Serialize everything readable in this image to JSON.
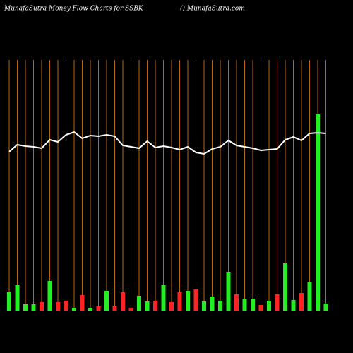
{
  "chart_data": {
    "type": "bar",
    "title": "MunafaSutra  Money Flow  Charts for SSBK",
    "subtitle": "() MunafaSutra.com",
    "categories": [
      null,
      null,
      null,
      null,
      null,
      null,
      null,
      null,
      null,
      null,
      null,
      null,
      null,
      null,
      null,
      null,
      null,
      null,
      null,
      null,
      null,
      null,
      null,
      null,
      null,
      null,
      null,
      null,
      null,
      null,
      null,
      null,
      null,
      null,
      null,
      null,
      null,
      null,
      null,
      null
    ],
    "series": [
      {
        "type": "bar",
        "values": [
          26,
          36,
          9,
          9,
          12,
          42,
          12,
          14,
          4,
          22,
          4,
          6,
          28,
          7,
          26,
          4,
          21,
          13,
          14,
          36,
          12,
          26,
          28,
          30,
          13,
          20,
          14,
          55,
          23,
          16,
          17,
          8,
          14,
          23,
          67,
          15,
          25,
          40,
          278,
          10
        ],
        "colors": [
          "#22ee22",
          "#22ee22",
          "#22ee22",
          "#22ee22",
          "#ff2222",
          "#22ee22",
          "#ff2222",
          "#ff2222",
          "#22ee22",
          "#ff2222",
          "#22ee22",
          "#ff2222",
          "#22ee22",
          "#ff2222",
          "#ff2222",
          "#ff2222",
          "#22ee22",
          "#22ee22",
          "#ff2222",
          "#22ee22",
          "#ff2222",
          "#ff2222",
          "#22ee22",
          "#ff2222",
          "#22ee22",
          "#22ee22",
          "#22ee22",
          "#22ee22",
          "#ff2222",
          "#22ee22",
          "#22ee22",
          "#ff2222",
          "#22ee22",
          "#ff2222",
          "#22ee22",
          "#22ee22",
          "#ff2222",
          "#22ee22",
          "#22ee22",
          "#22ee22"
        ]
      },
      {
        "type": "line",
        "color": "#ffffff",
        "values": [
          225,
          235,
          233,
          232,
          230,
          242,
          239,
          249,
          253,
          244,
          248,
          247,
          249,
          247,
          234,
          232,
          230,
          240,
          231,
          233,
          231,
          228,
          232,
          224,
          222,
          229,
          232,
          241,
          234,
          232,
          230,
          227,
          228,
          229,
          242,
          246,
          241,
          251,
          252,
          251
        ]
      }
    ],
    "ylim": [
      0,
      300
    ],
    "grid_color": "#b8650f"
  }
}
